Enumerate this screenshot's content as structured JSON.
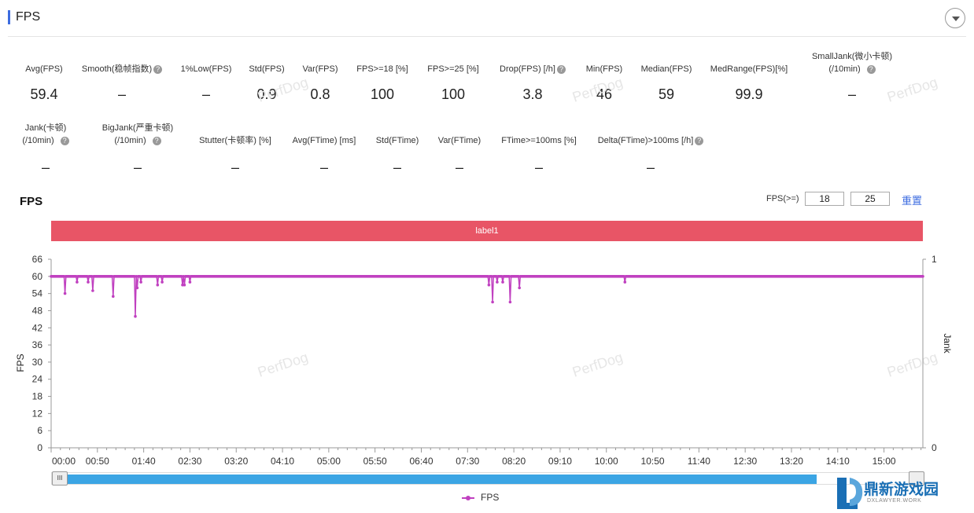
{
  "header": {
    "title": "FPS"
  },
  "metrics_row1": [
    {
      "label": "Avg(FPS)",
      "value": "59.4",
      "help": false
    },
    {
      "label": "Smooth(稳帧指数)",
      "value": "–",
      "help": true
    },
    {
      "label": "1%Low(FPS)",
      "value": "–",
      "help": false
    },
    {
      "label": "Std(FPS)",
      "value": "0.9",
      "help": false
    },
    {
      "label": "Var(FPS)",
      "value": "0.8",
      "help": false
    },
    {
      "label": "FPS>=18 [%]",
      "value": "100",
      "help": false
    },
    {
      "label": "FPS>=25 [%]",
      "value": "100",
      "help": false
    },
    {
      "label": "Drop(FPS) [/h]",
      "value": "3.8",
      "help": true
    },
    {
      "label": "Min(FPS)",
      "value": "46",
      "help": false
    },
    {
      "label": "Median(FPS)",
      "value": "59",
      "help": false
    },
    {
      "label": "MedRange(FPS)[%]",
      "value": "99.9",
      "help": false
    },
    {
      "label": "SmallJank(微小卡顿)",
      "label2": "(/10min)",
      "value": "–",
      "help": true
    }
  ],
  "metrics_row2": [
    {
      "label": "Jank(卡顿)",
      "label2": "(/10min)",
      "value": "–",
      "help": true
    },
    {
      "label": "BigJank(严重卡顿)",
      "label2": "(/10min)",
      "value": "–",
      "help": true
    },
    {
      "label": "Stutter(卡顿率) [%]",
      "value": "–",
      "help": false
    },
    {
      "label": "Avg(FTime) [ms]",
      "value": "–",
      "help": false
    },
    {
      "label": "Std(FTime)",
      "value": "–",
      "help": false
    },
    {
      "label": "Var(FTime)",
      "value": "–",
      "help": false
    },
    {
      "label": "FTime>=100ms [%]",
      "value": "–",
      "help": false
    },
    {
      "label": "Delta(FTime)>100ms [/h]",
      "value": "–",
      "help": true
    }
  ],
  "controls": {
    "chart_title": "FPS",
    "fps_threshold_label": "FPS(>=)",
    "threshold1": "18",
    "threshold2": "25",
    "reset_label": "重置",
    "band_label": "label1"
  },
  "watermark": "PerfDog",
  "legend_label": "FPS",
  "logo": {
    "text": "鼎新游戏园",
    "sub": "DXLAWYER.WORK"
  },
  "chart_data": {
    "type": "line",
    "title": "FPS",
    "ylabel": "FPS",
    "y2label": "Jank",
    "ylim": [
      0,
      66
    ],
    "yticks": [
      0,
      6,
      12,
      18,
      24,
      30,
      36,
      42,
      48,
      54,
      60,
      66
    ],
    "y2ticks": [
      "0",
      "1"
    ],
    "xticks": [
      "00:00",
      "00:50",
      "01:40",
      "02:30",
      "03:20",
      "04:10",
      "05:00",
      "05:50",
      "06:40",
      "07:30",
      "08:20",
      "09:10",
      "10:00",
      "10:50",
      "11:40",
      "12:30",
      "13:20",
      "14:10",
      "15:00"
    ],
    "xlim_seconds": [
      0,
      942
    ],
    "baseline": 60,
    "series": [
      {
        "name": "FPS",
        "color": "#c040c0",
        "dips": [
          {
            "t": 15,
            "v": 54
          },
          {
            "t": 28,
            "v": 58
          },
          {
            "t": 40,
            "v": 58
          },
          {
            "t": 45,
            "v": 55
          },
          {
            "t": 67,
            "v": 53
          },
          {
            "t": 91,
            "v": 46
          },
          {
            "t": 93,
            "v": 56
          },
          {
            "t": 97,
            "v": 58
          },
          {
            "t": 115,
            "v": 57
          },
          {
            "t": 120,
            "v": 58
          },
          {
            "t": 142,
            "v": 57
          },
          {
            "t": 144,
            "v": 57
          },
          {
            "t": 150,
            "v": 58
          },
          {
            "t": 473,
            "v": 57
          },
          {
            "t": 477,
            "v": 51
          },
          {
            "t": 482,
            "v": 58
          },
          {
            "t": 488,
            "v": 58
          },
          {
            "t": 496,
            "v": 51
          },
          {
            "t": 506,
            "v": 56
          },
          {
            "t": 620,
            "v": 58
          }
        ]
      }
    ]
  }
}
